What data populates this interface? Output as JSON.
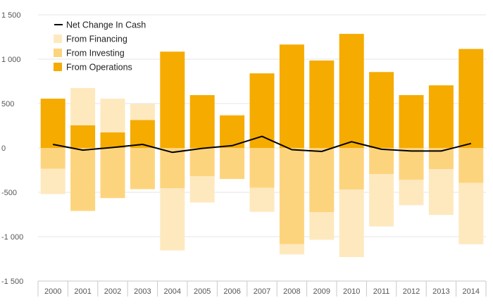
{
  "chart_data": {
    "type": "bar",
    "stacked": true,
    "categories": [
      "2000",
      "2001",
      "2002",
      "2003",
      "2004",
      "2005",
      "2006",
      "2007",
      "2008",
      "2009",
      "2010",
      "2011",
      "2012",
      "2013",
      "2014"
    ],
    "series": [
      {
        "name": "From Operations",
        "kind": "bar",
        "color": "#f5ab00",
        "values": [
          555,
          255,
          175,
          315,
          1085,
          595,
          365,
          840,
          1165,
          985,
          1285,
          855,
          595,
          705,
          1115
        ]
      },
      {
        "name": "From Investing",
        "kind": "bar",
        "color": "#fdd47e",
        "values": [
          -235,
          -710,
          -565,
          -465,
          -455,
          -320,
          -350,
          -450,
          -1085,
          -725,
          -470,
          -295,
          -360,
          -240,
          -395
        ]
      },
      {
        "name": "From Financing",
        "kind": "bar",
        "color": "#fee9bf",
        "values": [
          -285,
          420,
          380,
          180,
          -700,
          -295,
          10,
          -270,
          -115,
          -310,
          -760,
          -590,
          -285,
          -515,
          -690
        ]
      },
      {
        "name": "Net Change In Cash",
        "kind": "line",
        "color": "#000000",
        "values": [
          40,
          -25,
          5,
          40,
          -50,
          -5,
          25,
          130,
          -20,
          -40,
          70,
          -15,
          -35,
          -35,
          50
        ]
      }
    ],
    "yticks": [
      "1 500",
      "1 000",
      "500",
      "0",
      "-500",
      "-1 000",
      "-1 500"
    ],
    "ylim": [
      -1500,
      1500
    ],
    "grid": true,
    "legend_position": "top-left",
    "title": "",
    "xlabel": "",
    "ylabel": ""
  }
}
